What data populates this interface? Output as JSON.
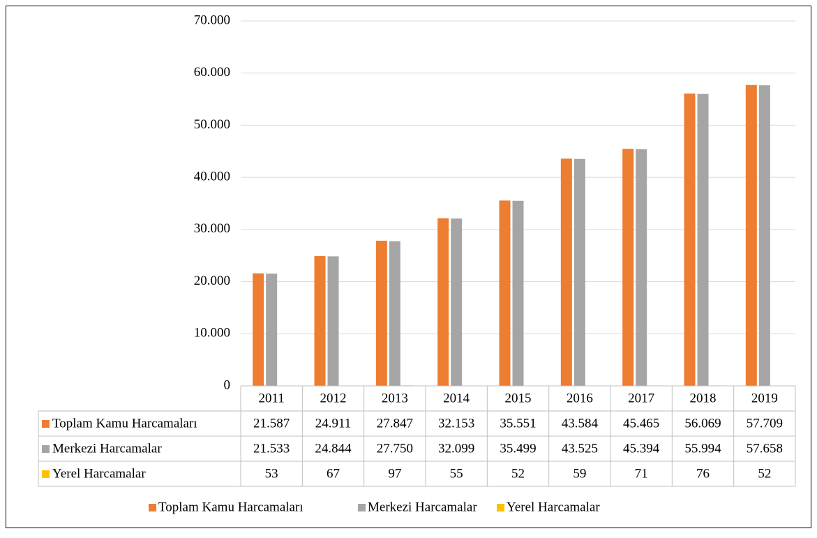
{
  "chart_data": {
    "type": "bar",
    "categories": [
      "2011",
      "2012",
      "2013",
      "2014",
      "2015",
      "2016",
      "2017",
      "2018",
      "2019"
    ],
    "series": [
      {
        "name": "Toplam Kamu Harcamaları",
        "color": "#ed7d31",
        "values": [
          21587,
          24911,
          27847,
          32153,
          35551,
          43584,
          45465,
          56069,
          57709
        ],
        "value_labels": [
          "21.587",
          "24.911",
          "27.847",
          "32.153",
          "35.551",
          "43.584",
          "45.465",
          "56.069",
          "57.709"
        ]
      },
      {
        "name": "Merkezi Harcamalar",
        "color": "#a5a5a5",
        "values": [
          21533,
          24844,
          27750,
          32099,
          35499,
          43525,
          45394,
          55994,
          57658
        ],
        "value_labels": [
          "21.533",
          "24.844",
          "27.750",
          "32.099",
          "35.499",
          "43.525",
          "45.394",
          "55.994",
          "57.658"
        ]
      },
      {
        "name": "Yerel Harcamalar",
        "color": "#ffc000",
        "values": [
          53,
          67,
          97,
          55,
          52,
          59,
          71,
          76,
          52
        ]
      }
    ],
    "ylim": [
      0,
      70000
    ],
    "yticks": [
      0,
      {
        "value": 10000,
        "label": "10.000"
      },
      {
        "value": 20000,
        "label": "20.000"
      },
      {
        "value": 30000,
        "label": "30.000"
      },
      {
        "value": 40000,
        "label": "40.000"
      },
      {
        "value": 50000,
        "label": "50.000"
      },
      {
        "value": 60000,
        "label": "60.000"
      },
      {
        "value": 70000,
        "label": "70.000"
      }
    ],
    "grid": true
  }
}
